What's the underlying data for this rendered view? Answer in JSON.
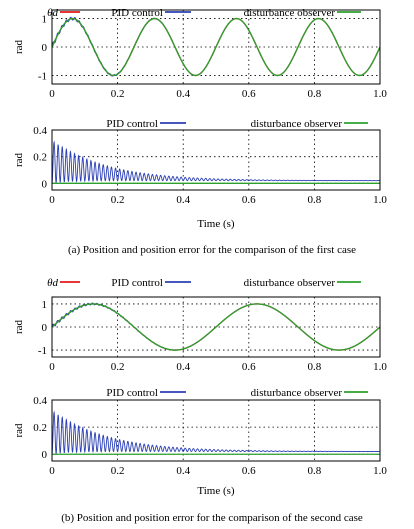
{
  "chart_data": [
    {
      "type": "line",
      "panel": "a-position",
      "ylabel": "rad",
      "xlim": [
        0,
        1.0
      ],
      "ylim": [
        -1.3,
        1.3
      ],
      "xticks": [
        "0",
        "0.2",
        "0.4",
        "0.6",
        "0.8",
        "1.0"
      ],
      "yticks": [
        "-1",
        "0",
        "1"
      ],
      "ytick_values": [
        -1,
        0,
        1
      ],
      "grid": "dotted",
      "legend_placement": "top",
      "reference": {
        "amplitude": 1,
        "frequency_hz": 4,
        "phase": "sine"
      },
      "series": [
        {
          "name": "θd",
          "color": "#e31a1c",
          "model": "sin"
        },
        {
          "name": "PID control",
          "color": "#2b3fb5",
          "model": "sin-with-oscillation"
        },
        {
          "name": "disturbance observer",
          "color": "#2ca02c",
          "model": "sin"
        }
      ]
    },
    {
      "type": "line",
      "panel": "a-error",
      "ylabel": "rad",
      "xlabel": "Time (s)",
      "xlim": [
        0,
        1.0
      ],
      "ylim": [
        -0.05,
        0.4
      ],
      "xticks": [
        "0",
        "0.2",
        "0.4",
        "0.6",
        "0.8",
        "1.0"
      ],
      "yticks": [
        "0",
        "0.2",
        "0.4"
      ],
      "ytick_values": [
        0,
        0.2,
        0.4
      ],
      "grid": "dotted",
      "legend_placement": "top",
      "series": [
        {
          "name": "PID control",
          "color": "#2b3fb5",
          "peak": 0.32,
          "oscillation": "decaying",
          "steady_offset": 0.02
        },
        {
          "name": "disturbance observer",
          "color": "#2ca02c",
          "steady_value": 0.0
        }
      ]
    },
    {
      "type": "line",
      "panel": "b-position",
      "ylabel": "rad",
      "xlim": [
        0,
        1.0
      ],
      "ylim": [
        -1.3,
        1.3
      ],
      "xticks": [
        "0",
        "0.2",
        "0.4",
        "0.6",
        "0.8",
        "1.0"
      ],
      "yticks": [
        "-1",
        "0",
        "1"
      ],
      "ytick_values": [
        -1,
        0,
        1
      ],
      "grid": "dotted",
      "legend_placement": "top",
      "reference": {
        "amplitude": 1,
        "frequency_hz": 2,
        "phase": "sine"
      },
      "series": [
        {
          "name": "θd",
          "color": "#e31a1c",
          "model": "sin"
        },
        {
          "name": "PID control",
          "color": "#2b3fb5",
          "model": "sin-with-oscillation"
        },
        {
          "name": "disturbance observer",
          "color": "#2ca02c",
          "model": "sin"
        }
      ]
    },
    {
      "type": "line",
      "panel": "b-error",
      "ylabel": "rad",
      "xlabel": "Time (s)",
      "xlim": [
        0,
        1.0
      ],
      "ylim": [
        -0.05,
        0.4
      ],
      "xticks": [
        "0",
        "0.2",
        "0.4",
        "0.6",
        "0.8",
        "1.0"
      ],
      "yticks": [
        "0",
        "0.2",
        "0.4"
      ],
      "ytick_values": [
        0,
        0.2,
        0.4
      ],
      "grid": "dotted",
      "legend_placement": "top",
      "series": [
        {
          "name": "PID control",
          "color": "#2b3fb5",
          "peak": 0.32,
          "oscillation": "decaying",
          "steady_offset": 0.02
        },
        {
          "name": "disturbance observer",
          "color": "#2ca02c",
          "steady_value": 0.0
        }
      ]
    }
  ],
  "captions": {
    "a": "(a) Position and position error for the comparison of the first case",
    "b": "(b) Position and position error for the comparison of the second case"
  }
}
